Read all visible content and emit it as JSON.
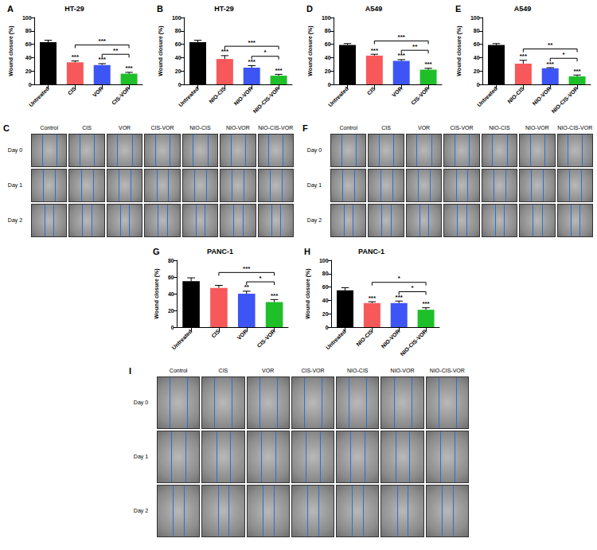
{
  "chart_data": [
    {
      "type": "bar",
      "panel": "A",
      "title": "HT-29",
      "y_label": "Wound closure (%)",
      "categories": [
        "Untreated",
        "CIS",
        "VOR",
        "CIS-VOR"
      ],
      "values": [
        63,
        33,
        29,
        16
      ],
      "errors": [
        3,
        2,
        2,
        2
      ],
      "colors": [
        "#000000",
        "#f7585a",
        "#3d55f5",
        "#1fbf2a"
      ],
      "significance": [
        null,
        "***",
        "***",
        "***"
      ],
      "comparisons": [
        {
          "from": "CIS",
          "to": "CIS-VOR",
          "label": "***"
        },
        {
          "from": "VOR",
          "to": "CIS-VOR",
          "label": "**"
        }
      ],
      "ylim": [
        0,
        100
      ],
      "yticks": [
        0,
        20,
        40,
        60,
        80,
        100
      ],
      "grid": false
    },
    {
      "type": "bar",
      "panel": "B",
      "title": "HT-29",
      "y_label": "Wound closure (%)",
      "categories": [
        "Untreated",
        "NIO-CIS",
        "NIO-VOR",
        "NIO-CIS-VOR"
      ],
      "values": [
        63,
        38,
        25,
        13
      ],
      "errors": [
        3,
        5,
        3,
        2
      ],
      "colors": [
        "#000000",
        "#f7585a",
        "#3d55f5",
        "#1fbf2a"
      ],
      "significance": [
        null,
        "***",
        "***",
        "***"
      ],
      "comparisons": [
        {
          "from": "NIO-CIS",
          "to": "NIO-CIS-VOR",
          "label": "***"
        },
        {
          "from": "NIO-VOR",
          "to": "NIO-CIS-VOR",
          "label": "*"
        }
      ],
      "ylim": [
        0,
        100
      ],
      "yticks": [
        0,
        20,
        40,
        60,
        80,
        100
      ],
      "grid": false
    },
    {
      "type": "bar",
      "panel": "D",
      "title": "A549",
      "y_label": "Wound closure (%)",
      "categories": [
        "Untreated",
        "CIS",
        "VOR",
        "CIS-VOR"
      ],
      "values": [
        59,
        43,
        35,
        22
      ],
      "errors": [
        2,
        2,
        2,
        2
      ],
      "colors": [
        "#000000",
        "#f7585a",
        "#3d55f5",
        "#1fbf2a"
      ],
      "significance": [
        null,
        "***",
        "***",
        "***"
      ],
      "comparisons": [
        {
          "from": "CIS",
          "to": "CIS-VOR",
          "label": "***"
        },
        {
          "from": "VOR",
          "to": "CIS-VOR",
          "label": "**"
        }
      ],
      "ylim": [
        0,
        100
      ],
      "yticks": [
        0,
        20,
        40,
        60,
        80,
        100
      ],
      "grid": false
    },
    {
      "type": "bar",
      "panel": "E",
      "title": "A549",
      "y_label": "Wound closure (%)",
      "categories": [
        "Untreated",
        "NIO-CIS",
        "NIO-VOR",
        "NIO-CIS-VOR"
      ],
      "values": [
        59,
        31,
        24,
        12
      ],
      "errors": [
        2,
        5,
        1,
        2
      ],
      "colors": [
        "#000000",
        "#f7585a",
        "#3d55f5",
        "#1fbf2a"
      ],
      "significance": [
        null,
        "***",
        "***",
        "***"
      ],
      "comparisons": [
        {
          "from": "NIO-CIS",
          "to": "NIO-CIS-VOR",
          "label": "**"
        },
        {
          "from": "NIO-VOR",
          "to": "NIO-CIS-VOR",
          "label": "*"
        }
      ],
      "ylim": [
        0,
        100
      ],
      "yticks": [
        0,
        20,
        40,
        60,
        80,
        100
      ],
      "grid": false
    },
    {
      "type": "bar",
      "panel": "G",
      "title": "PANC-1",
      "y_label": "Wound closure (%)",
      "categories": [
        "Untreated",
        "CIS",
        "VOR",
        "CIS-VOR"
      ],
      "values": [
        55,
        47,
        40,
        30
      ],
      "errors": [
        4,
        3,
        3,
        3
      ],
      "colors": [
        "#000000",
        "#f7585a",
        "#3d55f5",
        "#1fbf2a"
      ],
      "significance": [
        null,
        null,
        "**",
        "***"
      ],
      "comparisons": [
        {
          "from": "CIS",
          "to": "CIS-VOR",
          "label": "***"
        },
        {
          "from": "VOR",
          "to": "CIS-VOR",
          "label": "*"
        }
      ],
      "ylim": [
        0,
        80
      ],
      "yticks": [
        0,
        20,
        40,
        60,
        80
      ],
      "grid": false
    },
    {
      "type": "bar",
      "panel": "H",
      "title": "PANC-1",
      "y_label": "Wound closure (%)",
      "categories": [
        "Untreated",
        "NIO-CIS",
        "NIO-VOR",
        "NIO-CIS-VOR"
      ],
      "values": [
        55,
        36,
        36,
        26
      ],
      "errors": [
        4,
        2,
        3,
        3
      ],
      "colors": [
        "#000000",
        "#f7585a",
        "#3d55f5",
        "#1fbf2a"
      ],
      "significance": [
        null,
        "***",
        "***",
        "***"
      ],
      "comparisons": [
        {
          "from": "NIO-CIS",
          "to": "NIO-CIS-VOR",
          "label": "*"
        },
        {
          "from": "NIO-VOR",
          "to": "NIO-CIS-VOR",
          "label": "*"
        }
      ],
      "ylim": [
        0,
        100
      ],
      "yticks": [
        0,
        20,
        40,
        60,
        80,
        100
      ],
      "grid": false
    }
  ],
  "image_panels": [
    {
      "panel": "C",
      "columns": [
        "Control",
        "CIS",
        "VOR",
        "CIS-VOR",
        "NIO-CIS",
        "NIO-VOR",
        "NIO-CIS-VOR"
      ],
      "rows": [
        "Day 0",
        "Day 1",
        "Day 2"
      ]
    },
    {
      "panel": "F",
      "columns": [
        "Control",
        "CIS",
        "VOR",
        "CIS-VOR",
        "NIO-CIS",
        "NIO-VOR",
        "NIO-CIS-VOR"
      ],
      "rows": [
        "Day 0",
        "Day 1",
        "Day 2"
      ]
    },
    {
      "panel": "I",
      "columns": [
        "Control",
        "CIS",
        "VOR",
        "CIS-VOR",
        "NIO-CIS",
        "NIO-VOR",
        "NIO-CIS-VOR"
      ],
      "rows": [
        "Day 0",
        "Day 1",
        "Day 2"
      ]
    }
  ]
}
